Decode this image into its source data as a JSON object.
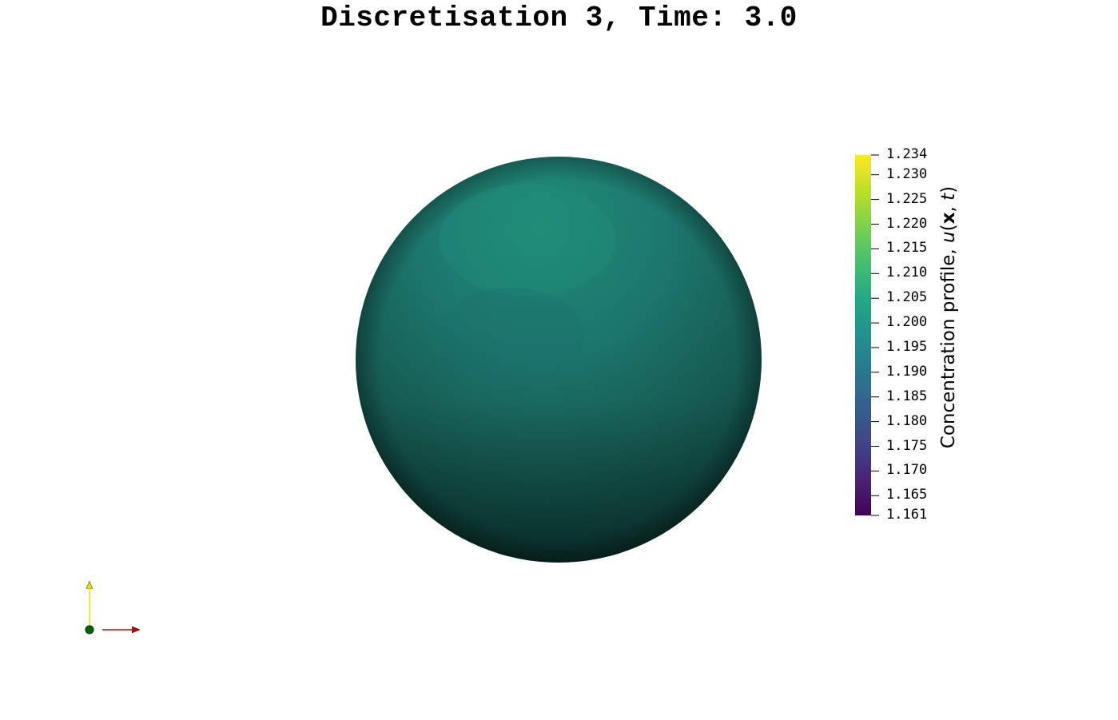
{
  "title": "Discretisation 3, Time: 3.0",
  "colorbar": {
    "label_prefix": "Concentration profile, ",
    "label_u": "u",
    "label_open": "(",
    "label_x": "x",
    "label_comma": ", ",
    "label_t": "t",
    "label_close": ")",
    "min": 1.161,
    "max": 1.234,
    "colormap": "viridis",
    "ticks": [
      "1.234",
      "1.230",
      "1.225",
      "1.220",
      "1.215",
      "1.210",
      "1.205",
      "1.200",
      "1.195",
      "1.190",
      "1.185",
      "1.180",
      "1.175",
      "1.170",
      "1.165",
      "1.161"
    ]
  },
  "sphere": {
    "surface_color": "#1e7a6e",
    "shade_color": "#0b3a34"
  },
  "axes": {
    "x_color": "#cc0000",
    "y_color": "#e8e000",
    "z_color": "#006400"
  }
}
